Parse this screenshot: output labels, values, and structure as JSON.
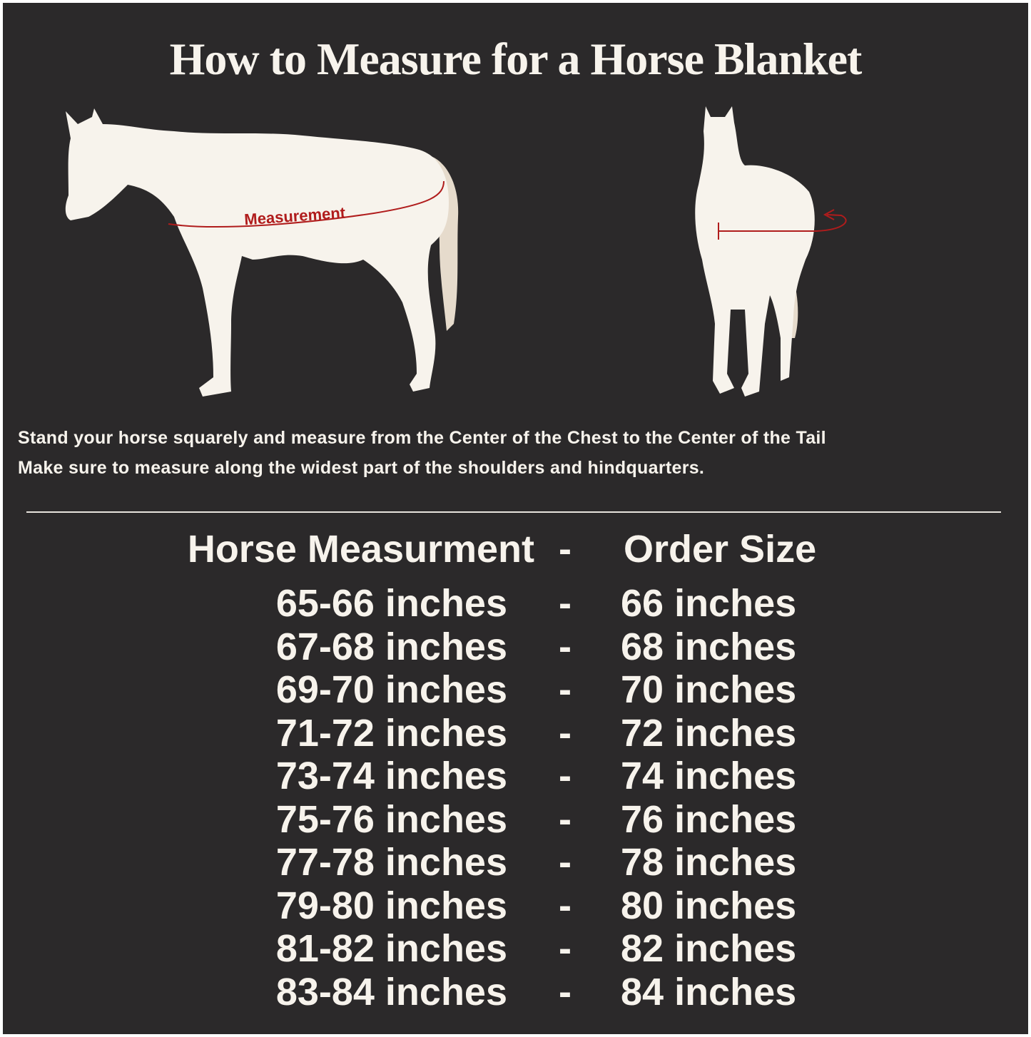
{
  "title": "How to Measure for a Horse Blanket",
  "diagram": {
    "side_label": "Measurement",
    "horse_color": "#f7f3ec",
    "tail_color": "#e6dbcc",
    "measure_color": "#b01c1c"
  },
  "instructions": [
    "Stand your horse squarely and measure from the Center of the Chest to the Center of the Tail",
    "Make sure to measure along the widest part of the shoulders and hindquarters."
  ],
  "table": {
    "header": {
      "measurement": "Horse Measurment",
      "separator": "-",
      "size": "Order Size"
    },
    "rows": [
      {
        "measurement": "65-66 inches",
        "separator": "-",
        "size": "66 inches"
      },
      {
        "measurement": "67-68 inches",
        "separator": "-",
        "size": "68 inches"
      },
      {
        "measurement": "69-70 inches",
        "separator": "-",
        "size": "70 inches"
      },
      {
        "measurement": "71-72 inches",
        "separator": "-",
        "size": "72 inches"
      },
      {
        "measurement": "73-74 inches",
        "separator": "-",
        "size": "74 inches"
      },
      {
        "measurement": "75-76 inches",
        "separator": "-",
        "size": "76 inches"
      },
      {
        "measurement": "77-78 inches",
        "separator": "-",
        "size": "78 inches"
      },
      {
        "measurement": "79-80 inches",
        "separator": "-",
        "size": "80 inches"
      },
      {
        "measurement": "81-82 inches",
        "separator": "-",
        "size": "82 inches"
      },
      {
        "measurement": "83-84 inches",
        "separator": "-",
        "size": "84 inches"
      }
    ]
  },
  "colors": {
    "background": "#2b292a",
    "text": "#f7f3ec"
  }
}
